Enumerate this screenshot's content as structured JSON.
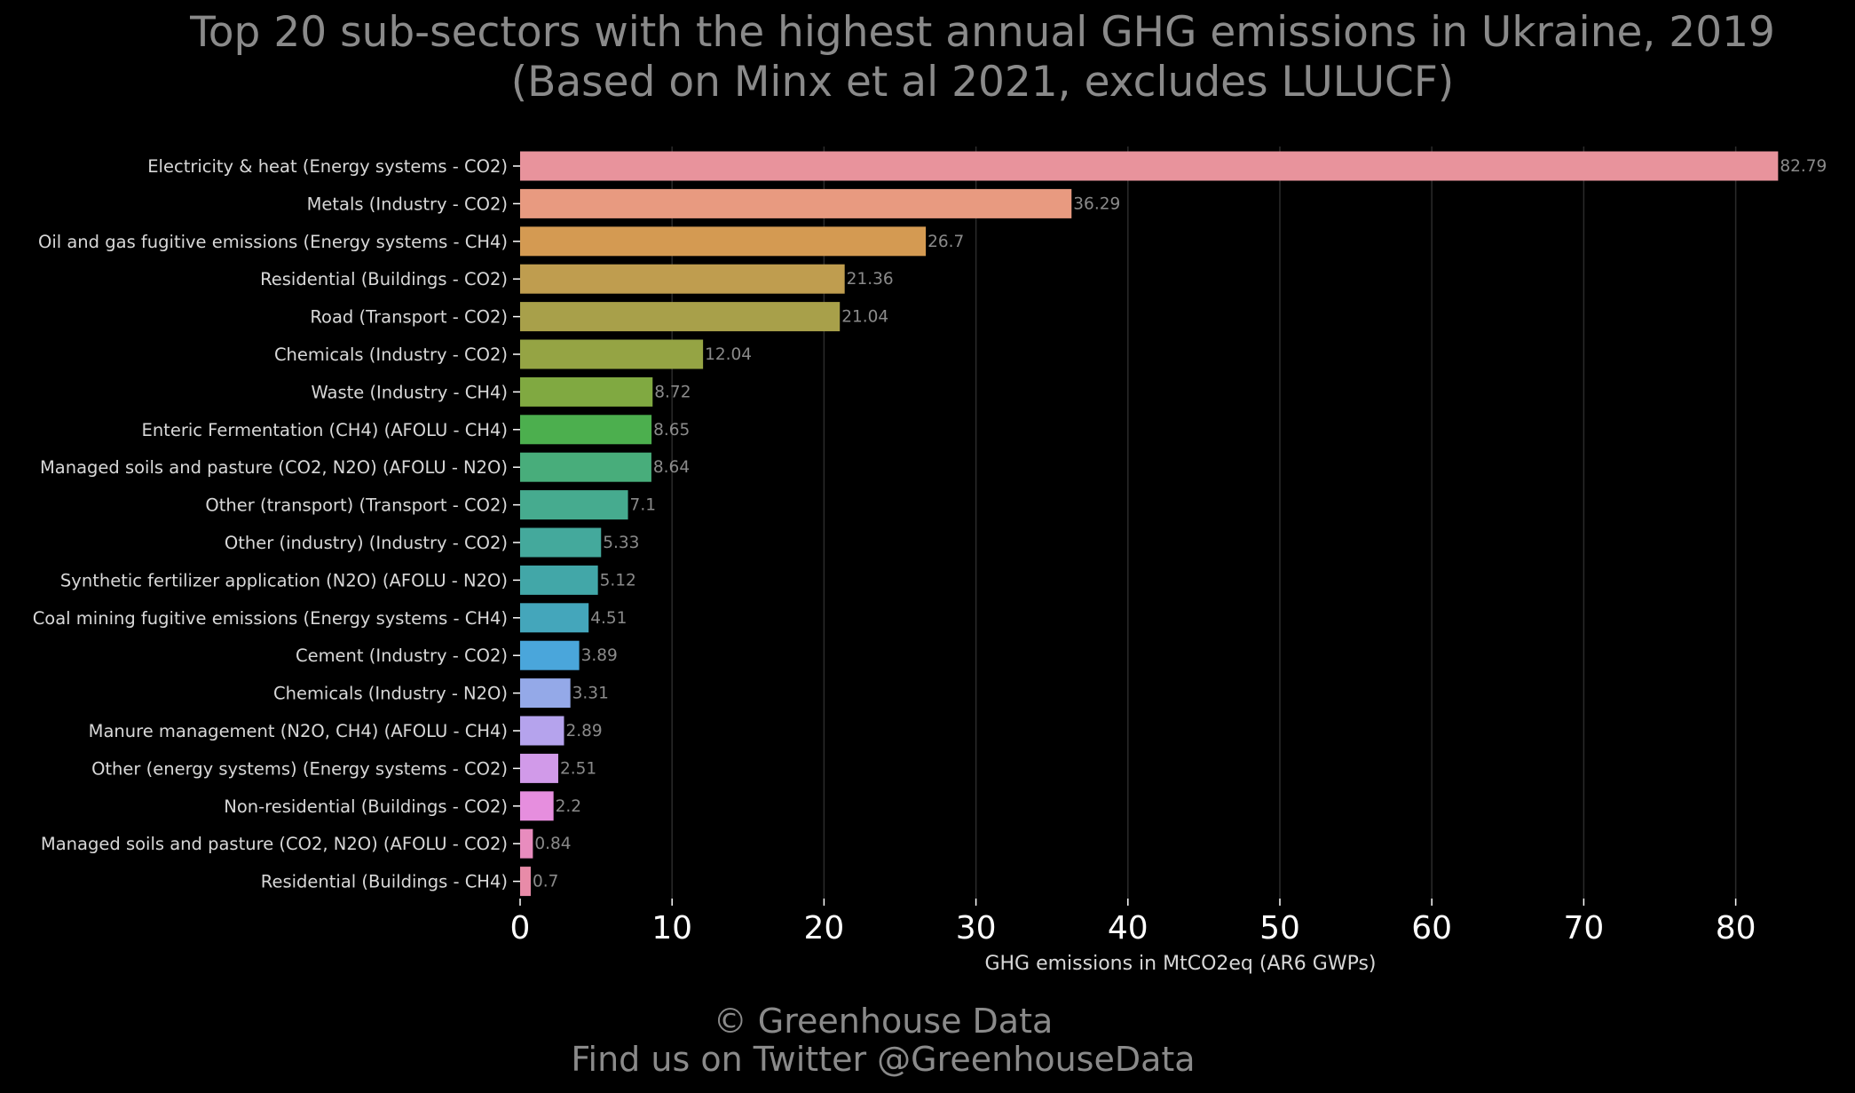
{
  "chart_data": {
    "type": "bar",
    "orientation": "horizontal",
    "title_line1": "Top 20 sub-sectors with the highest annual GHG emissions in Ukraine, 2019",
    "title_line2": "(Based on Minx et al 2021, excludes LULUCF)",
    "xlabel": "GHG emissions in MtCO2eq (AR6 GWPs)",
    "ylabel": "",
    "xlim": [
      0,
      85
    ],
    "xticks": [
      "0",
      "10",
      "20",
      "30",
      "40",
      "50",
      "60",
      "70",
      "80"
    ],
    "grid": "vertical",
    "categories": [
      "Electricity & heat (Energy systems - CO2)",
      "Metals (Industry - CO2)",
      "Oil and gas fugitive emissions (Energy systems - CH4)",
      "Residential (Buildings - CO2)",
      "Road (Transport - CO2)",
      "Chemicals (Industry - CO2)",
      "Waste (Industry - CH4)",
      "Enteric Fermentation (CH4) (AFOLU - CH4)",
      "Managed soils and pasture (CO2, N2O) (AFOLU - N2O)",
      "Other (transport) (Transport - CO2)",
      "Other (industry) (Industry - CO2)",
      "Synthetic fertilizer application (N2O) (AFOLU - N2O)",
      "Coal mining fugitive emissions (Energy systems - CH4)",
      "Cement (Industry - CO2)",
      "Chemicals (Industry - N2O)",
      "Manure management (N2O, CH4) (AFOLU - CH4)",
      "Other (energy systems) (Energy systems - CO2)",
      "Non-residential (Buildings - CO2)",
      "Managed soils and pasture (CO2, N2O) (AFOLU - CO2)",
      "Residential (Buildings - CH4)"
    ],
    "values": [
      82.79,
      36.29,
      26.7,
      21.36,
      21.04,
      12.04,
      8.72,
      8.65,
      8.64,
      7.1,
      5.33,
      5.12,
      4.51,
      3.89,
      3.31,
      2.89,
      2.51,
      2.2,
      0.84,
      0.7
    ],
    "value_labels": [
      "82.79",
      "36.29",
      "26.7",
      "21.36",
      "21.04",
      "12.04",
      "8.72",
      "8.65",
      "8.64",
      "7.1",
      "5.33",
      "5.12",
      "4.51",
      "3.89",
      "3.31",
      "2.89",
      "2.51",
      "2.2",
      "0.84",
      "0.7"
    ],
    "colors": [
      "#e8939c",
      "#e89a80",
      "#d49a52",
      "#bf9d4f",
      "#a8a04a",
      "#95a444",
      "#80a941",
      "#4caf4e",
      "#48ad7b",
      "#46ab8f",
      "#44a99c",
      "#42a7a8",
      "#44a6bb",
      "#4aa6db",
      "#94a9e8",
      "#b5a3ed",
      "#d19ae9",
      "#e68ede",
      "#e88cbe",
      "#e88ba8"
    ]
  },
  "footer": {
    "line1": "© Greenhouse Data",
    "line2": "Find us on Twitter @GreenhouseData"
  }
}
